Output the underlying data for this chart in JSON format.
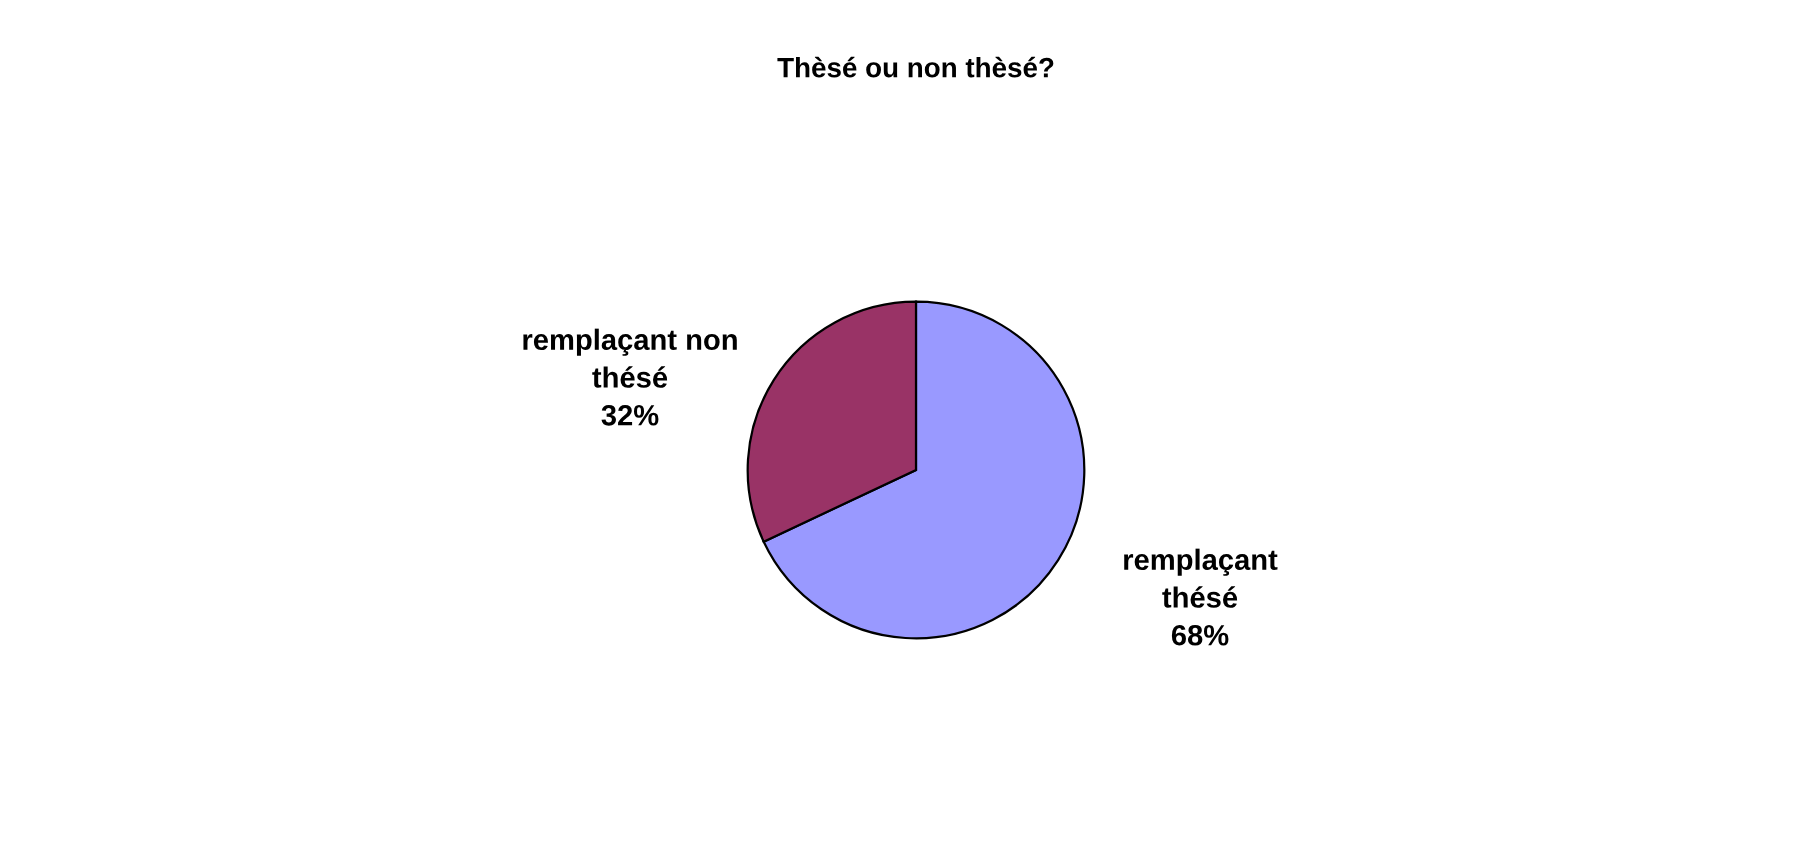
{
  "chart_data": {
    "type": "pie",
    "title": "Thèsé ou non thèsé?",
    "categories": [
      "remplaçant thésé",
      "remplaçant non thésé"
    ],
    "values": [
      68,
      32
    ],
    "colors": [
      "#9999ff",
      "#993366"
    ],
    "value_labels": [
      "68%",
      "32%"
    ],
    "legend": false
  }
}
